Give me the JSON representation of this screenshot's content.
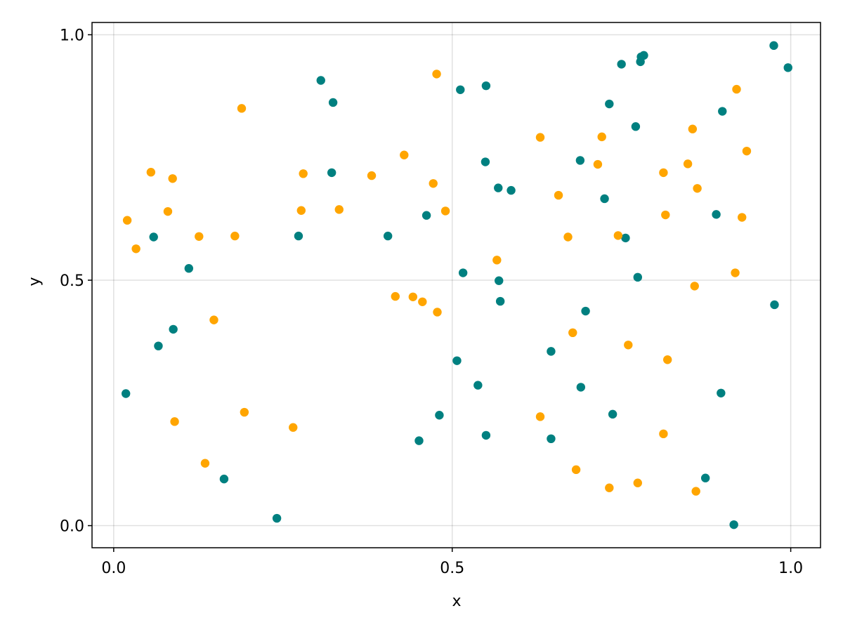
{
  "chart_data": {
    "type": "scatter",
    "title": "",
    "xlabel": "x",
    "ylabel": "y",
    "xlim": [
      -0.032,
      1.044
    ],
    "ylim": [
      -0.045,
      1.025
    ],
    "xticks": [
      0.0,
      0.5,
      1.0
    ],
    "yticks": [
      0.0,
      0.5,
      1.0
    ],
    "xtick_labels": [
      "0.0",
      "0.5",
      "1.0"
    ],
    "ytick_labels": [
      "0.0",
      "0.5",
      "1.0"
    ],
    "grid": true,
    "legend": "none",
    "series": [
      {
        "color": "#008080",
        "points": [
          [
            0.018,
            0.269
          ],
          [
            0.059,
            0.588
          ],
          [
            0.066,
            0.366
          ],
          [
            0.088,
            0.4
          ],
          [
            0.111,
            0.524
          ],
          [
            0.163,
            0.095
          ],
          [
            0.241,
            0.015
          ],
          [
            0.273,
            0.59
          ],
          [
            0.306,
            0.907
          ],
          [
            0.322,
            0.719
          ],
          [
            0.324,
            0.862
          ],
          [
            0.405,
            0.59
          ],
          [
            0.451,
            0.173
          ],
          [
            0.462,
            0.632
          ],
          [
            0.481,
            0.225
          ],
          [
            0.507,
            0.336
          ],
          [
            0.512,
            0.888
          ],
          [
            0.516,
            0.515
          ],
          [
            0.538,
            0.286
          ],
          [
            0.549,
            0.741
          ],
          [
            0.55,
            0.184
          ],
          [
            0.55,
            0.896
          ],
          [
            0.568,
            0.688
          ],
          [
            0.569,
            0.499
          ],
          [
            0.571,
            0.457
          ],
          [
            0.587,
            0.683
          ],
          [
            0.646,
            0.355
          ],
          [
            0.646,
            0.177
          ],
          [
            0.689,
            0.744
          ],
          [
            0.69,
            0.282
          ],
          [
            0.697,
            0.437
          ],
          [
            0.725,
            0.666
          ],
          [
            0.732,
            0.859
          ],
          [
            0.737,
            0.227
          ],
          [
            0.75,
            0.94
          ],
          [
            0.756,
            0.586
          ],
          [
            0.771,
            0.813
          ],
          [
            0.774,
            0.506
          ],
          [
            0.778,
            0.945
          ],
          [
            0.779,
            0.955
          ],
          [
            0.783,
            0.958
          ],
          [
            0.874,
            0.097
          ],
          [
            0.89,
            0.634
          ],
          [
            0.897,
            0.27
          ],
          [
            0.899,
            0.844
          ],
          [
            0.916,
            0.002
          ],
          [
            0.975,
            0.978
          ],
          [
            0.976,
            0.45
          ],
          [
            0.996,
            0.933
          ]
        ]
      },
      {
        "color": "#ffa500",
        "points": [
          [
            0.02,
            0.622
          ],
          [
            0.033,
            0.564
          ],
          [
            0.055,
            0.72
          ],
          [
            0.087,
            0.707
          ],
          [
            0.08,
            0.64
          ],
          [
            0.09,
            0.212
          ],
          [
            0.126,
            0.589
          ],
          [
            0.135,
            0.127
          ],
          [
            0.148,
            0.419
          ],
          [
            0.179,
            0.59
          ],
          [
            0.189,
            0.85
          ],
          [
            0.193,
            0.231
          ],
          [
            0.265,
            0.2
          ],
          [
            0.277,
            0.642
          ],
          [
            0.28,
            0.717
          ],
          [
            0.333,
            0.644
          ],
          [
            0.381,
            0.713
          ],
          [
            0.416,
            0.467
          ],
          [
            0.429,
            0.755
          ],
          [
            0.442,
            0.466
          ],
          [
            0.456,
            0.456
          ],
          [
            0.472,
            0.697
          ],
          [
            0.477,
            0.92
          ],
          [
            0.478,
            0.435
          ],
          [
            0.49,
            0.641
          ],
          [
            0.566,
            0.541
          ],
          [
            0.63,
            0.222
          ],
          [
            0.63,
            0.791
          ],
          [
            0.657,
            0.673
          ],
          [
            0.671,
            0.588
          ],
          [
            0.678,
            0.393
          ],
          [
            0.683,
            0.114
          ],
          [
            0.715,
            0.736
          ],
          [
            0.721,
            0.792
          ],
          [
            0.732,
            0.077
          ],
          [
            0.745,
            0.591
          ],
          [
            0.76,
            0.368
          ],
          [
            0.774,
            0.087
          ],
          [
            0.812,
            0.719
          ],
          [
            0.812,
            0.187
          ],
          [
            0.815,
            0.633
          ],
          [
            0.818,
            0.338
          ],
          [
            0.848,
            0.737
          ],
          [
            0.855,
            0.808
          ],
          [
            0.858,
            0.488
          ],
          [
            0.86,
            0.07
          ],
          [
            0.862,
            0.687
          ],
          [
            0.918,
            0.515
          ],
          [
            0.92,
            0.889
          ],
          [
            0.928,
            0.628
          ],
          [
            0.935,
            0.763
          ]
        ]
      }
    ]
  }
}
